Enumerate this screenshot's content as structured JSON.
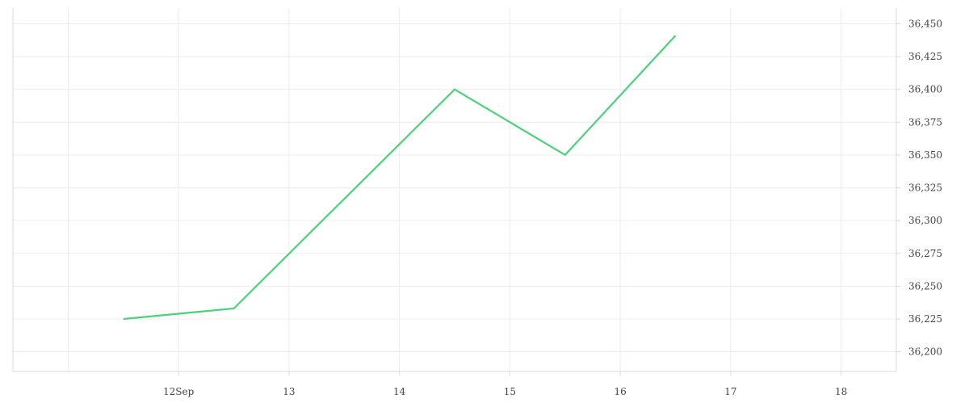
{
  "chart_data": {
    "type": "line",
    "x_tick_labels": [
      "12Sep",
      "13",
      "14",
      "15",
      "16",
      "17",
      "18"
    ],
    "series": [
      {
        "x": [
          "2023-09-11",
          "2023-09-12",
          "2023-09-14",
          "2023-09-15",
          "2023-09-16"
        ],
        "y": [
          36225,
          36233,
          36400,
          36350,
          36441
        ]
      }
    ],
    "xlim": [
      "2023-09-10 12:00",
      "2023-09-18 12:00"
    ],
    "ylim": [
      36185,
      36462
    ],
    "y_ticks": [
      36200,
      36225,
      36250,
      36275,
      36300,
      36325,
      36350,
      36375,
      36400,
      36425,
      36450
    ],
    "y_axis_position": "right",
    "grid": true,
    "colors": {
      "line": "#4cd07a",
      "grid": "#ececec",
      "axis": "#d8d8d8",
      "text": "#444444"
    }
  }
}
